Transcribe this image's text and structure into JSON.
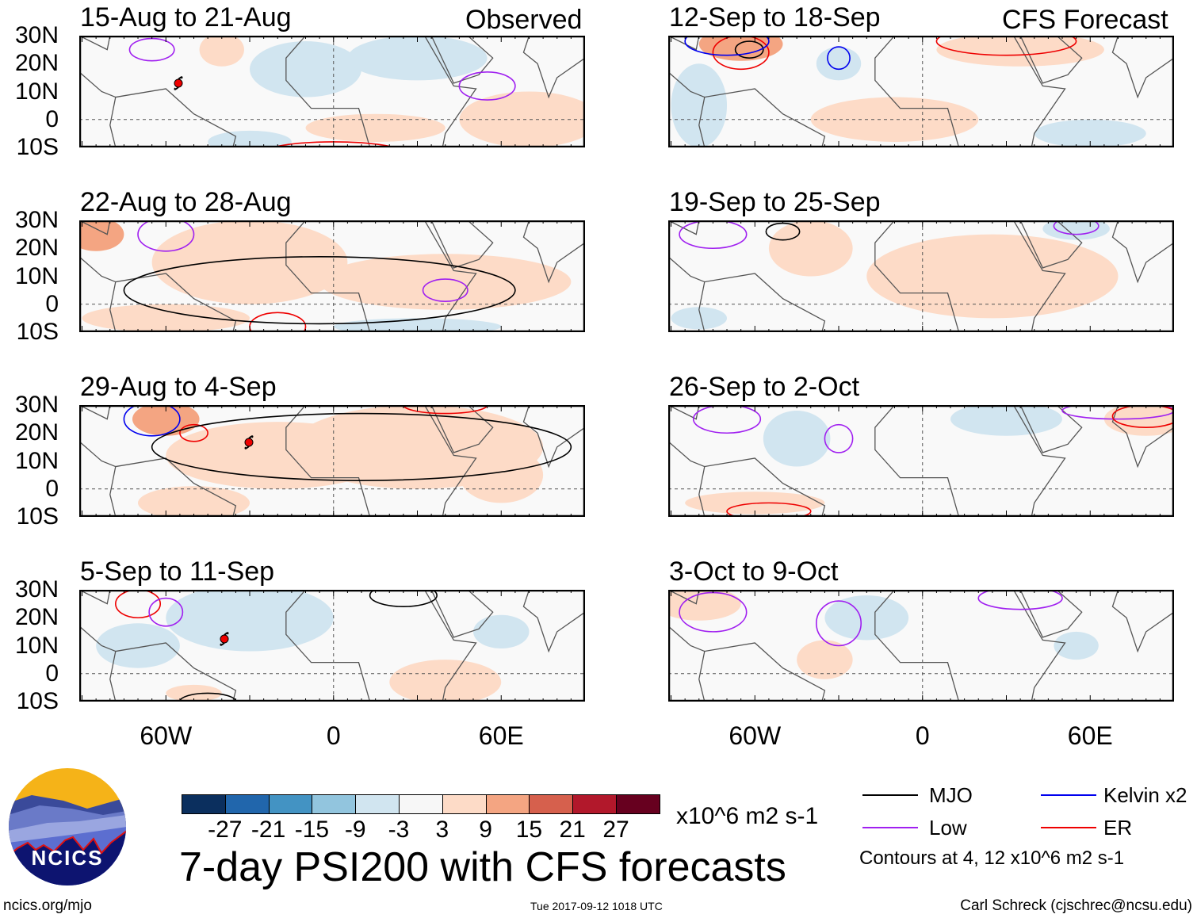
{
  "headers": {
    "observed": "Observed",
    "forecast": "CFS Forecast"
  },
  "left_panels": [
    {
      "title": "15-Aug to 21-Aug"
    },
    {
      "title": "22-Aug to 28-Aug"
    },
    {
      "title": "29-Aug to 4-Sep"
    },
    {
      "title": "5-Sep to 11-Sep"
    }
  ],
  "right_panels": [
    {
      "title": "12-Sep to 18-Sep"
    },
    {
      "title": "19-Sep to 25-Sep"
    },
    {
      "title": "26-Sep to 2-Oct"
    },
    {
      "title": "3-Oct to 9-Oct"
    }
  ],
  "lat_labels": [
    "30N",
    "20N",
    "10N",
    "0",
    "10S"
  ],
  "lon_labels": [
    "60W",
    "0",
    "60E"
  ],
  "colorbar": {
    "colors": [
      "#0b2f5e",
      "#2166ac",
      "#4393c3",
      "#92c5de",
      "#d1e5f0",
      "#f7f7f7",
      "#fddbc7",
      "#f4a582",
      "#d6604d",
      "#b2182b",
      "#67001f"
    ],
    "labels": [
      "-27",
      "-21",
      "-15",
      "-9",
      "-3",
      "3",
      "9",
      "15",
      "21",
      "27"
    ],
    "units": "x10^6 m2 s-1"
  },
  "title": "7-day PSI200 with CFS forecasts",
  "timestamp": "Tue 2017-09-12 1018 UTC",
  "logo_text": "NCICS",
  "website": "ncics.org/mjo",
  "credit": "Carl Schreck (cjschrec@ncsu.edu)",
  "legend": {
    "items": [
      {
        "label": "MJO",
        "color": "#000000"
      },
      {
        "label": "Kelvin x2",
        "color": "#0000ee"
      },
      {
        "label": "Low",
        "color": "#a020f0"
      },
      {
        "label": "ER",
        "color": "#ee0000"
      }
    ],
    "note": "Contours at 4, 12 x10^6 m2 s-1"
  }
}
